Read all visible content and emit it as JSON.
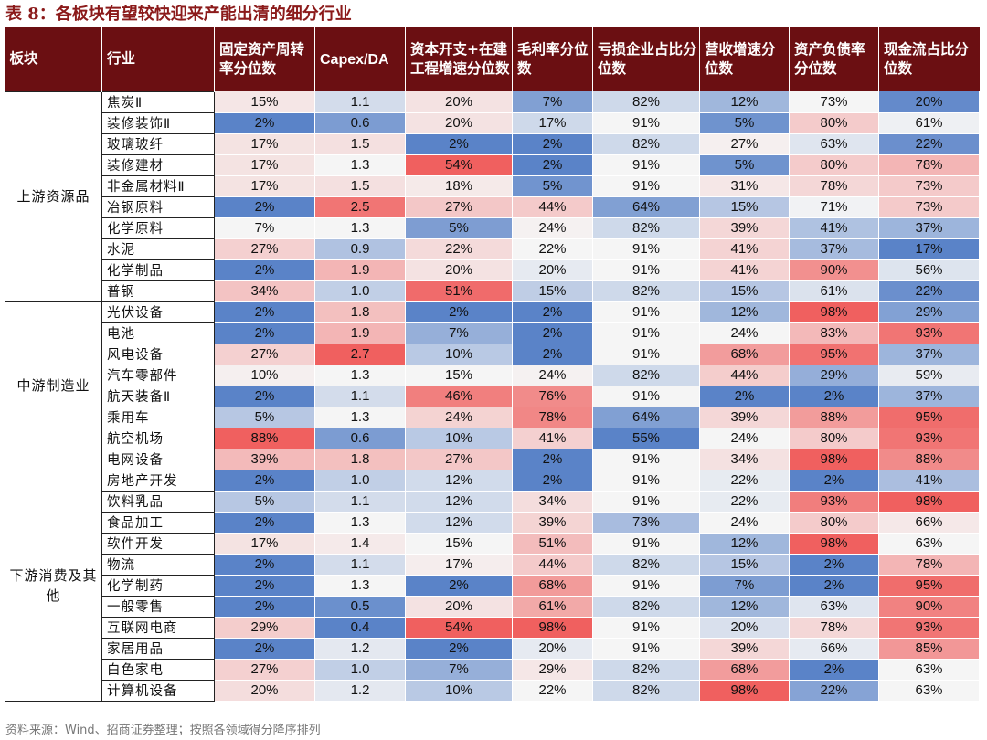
{
  "title": "表 8：各板块有望较快迎来产能出清的细分行业",
  "headers": [
    "板块",
    "行业",
    "固定资产周转率分位数",
    "Capex/DA",
    "资本开支+在建工程增速分位数",
    "毛利率分位数",
    "亏损企业占比分位数",
    "营收增速分位数",
    "资产负债率分位数",
    "现金流占比分位数"
  ],
  "sectors": [
    {
      "name": "上游资源品",
      "rows": [
        [
          "焦炭Ⅱ",
          "15%",
          "1.1",
          "20%",
          "7%",
          "82%",
          "12%",
          "73%",
          "20%"
        ],
        [
          "装修装饰Ⅱ",
          "2%",
          "0.6",
          "20%",
          "17%",
          "91%",
          "5%",
          "80%",
          "61%"
        ],
        [
          "玻璃玻纤",
          "17%",
          "1.5",
          "2%",
          "2%",
          "82%",
          "27%",
          "63%",
          "22%"
        ],
        [
          "装修建材",
          "17%",
          "1.3",
          "54%",
          "2%",
          "91%",
          "5%",
          "80%",
          "78%"
        ],
        [
          "非金属材料Ⅱ",
          "17%",
          "1.5",
          "18%",
          "5%",
          "91%",
          "31%",
          "78%",
          "73%"
        ],
        [
          "冶钢原料",
          "2%",
          "2.5",
          "27%",
          "44%",
          "64%",
          "15%",
          "71%",
          "73%"
        ],
        [
          "化学原料",
          "7%",
          "1.3",
          "5%",
          "24%",
          "82%",
          "39%",
          "41%",
          "37%"
        ],
        [
          "水泥",
          "27%",
          "0.9",
          "22%",
          "22%",
          "91%",
          "41%",
          "37%",
          "17%"
        ],
        [
          "化学制品",
          "2%",
          "1.9",
          "20%",
          "20%",
          "91%",
          "41%",
          "90%",
          "56%"
        ],
        [
          "普钢",
          "34%",
          "1.0",
          "51%",
          "15%",
          "82%",
          "15%",
          "61%",
          "22%"
        ]
      ]
    },
    {
      "name": "中游制造业",
      "rows": [
        [
          "光伏设备",
          "2%",
          "1.8",
          "2%",
          "2%",
          "91%",
          "12%",
          "98%",
          "29%"
        ],
        [
          "电池",
          "2%",
          "1.9",
          "7%",
          "2%",
          "91%",
          "24%",
          "83%",
          "93%"
        ],
        [
          "风电设备",
          "27%",
          "2.7",
          "10%",
          "2%",
          "91%",
          "68%",
          "95%",
          "37%"
        ],
        [
          "汽车零部件",
          "10%",
          "1.3",
          "15%",
          "24%",
          "82%",
          "44%",
          "29%",
          "59%"
        ],
        [
          "航天装备Ⅱ",
          "2%",
          "1.1",
          "46%",
          "76%",
          "91%",
          "2%",
          "2%",
          "37%"
        ],
        [
          "乘用车",
          "5%",
          "1.3",
          "24%",
          "78%",
          "64%",
          "39%",
          "88%",
          "95%"
        ],
        [
          "航空机场",
          "88%",
          "0.6",
          "10%",
          "41%",
          "55%",
          "24%",
          "80%",
          "93%"
        ],
        [
          "电网设备",
          "39%",
          "1.8",
          "27%",
          "2%",
          "91%",
          "34%",
          "98%",
          "88%"
        ]
      ]
    },
    {
      "name": "下游消费及其他",
      "rows": [
        [
          "房地产开发",
          "2%",
          "1.0",
          "12%",
          "2%",
          "91%",
          "22%",
          "2%",
          "41%"
        ],
        [
          "饮料乳品",
          "5%",
          "1.1",
          "12%",
          "34%",
          "91%",
          "22%",
          "93%",
          "98%"
        ],
        [
          "食品加工",
          "2%",
          "1.3",
          "12%",
          "39%",
          "73%",
          "24%",
          "80%",
          "66%"
        ],
        [
          "软件开发",
          "17%",
          "1.4",
          "15%",
          "51%",
          "91%",
          "12%",
          "98%",
          "63%"
        ],
        [
          "物流",
          "2%",
          "1.1",
          "17%",
          "44%",
          "82%",
          "15%",
          "2%",
          "78%"
        ],
        [
          "化学制药",
          "2%",
          "1.3",
          "2%",
          "68%",
          "91%",
          "7%",
          "2%",
          "95%"
        ],
        [
          "一般零售",
          "2%",
          "0.5",
          "20%",
          "61%",
          "82%",
          "12%",
          "63%",
          "90%"
        ],
        [
          "互联网电商",
          "29%",
          "0.4",
          "54%",
          "98%",
          "91%",
          "20%",
          "78%",
          "93%"
        ],
        [
          "家居用品",
          "2%",
          "1.2",
          "2%",
          "20%",
          "91%",
          "39%",
          "66%",
          "85%"
        ],
        [
          "白色家电",
          "27%",
          "1.0",
          "7%",
          "29%",
          "82%",
          "68%",
          "2%",
          "63%"
        ],
        [
          "计算机设备",
          "20%",
          "1.2",
          "10%",
          "22%",
          "82%",
          "98%",
          "22%",
          "63%"
        ]
      ]
    }
  ],
  "source": "资料来源：Wind、招商证券整理；按照各领域得分降序排列",
  "colors": {
    "header_bg": "#6b0f12",
    "title_color": "#8b1a1a",
    "low_blue": "#5a83c8",
    "mid_white": "#f5f5f5",
    "high_red": "#f0605f"
  }
}
